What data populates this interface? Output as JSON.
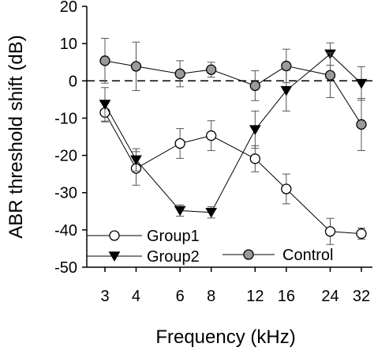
{
  "chart_data": {
    "type": "line",
    "xlabel": "Frequency (kHz)",
    "ylabel": "ABR threshold shift (dB)",
    "x_scale": "log2",
    "x": [
      3,
      4,
      6,
      8,
      12,
      16,
      24,
      32
    ],
    "x_tick_labels": [
      "3",
      "4",
      "6",
      "8",
      "12",
      "16",
      "24",
      "32"
    ],
    "ylim": [
      -50,
      20
    ],
    "y_ticks": [
      20,
      10,
      0,
      -10,
      -20,
      -30,
      -40,
      -50
    ],
    "y_tick_labels": [
      "20",
      "10",
      "0",
      "-10",
      "-20",
      "-30",
      "-40",
      "-50"
    ],
    "reference_line": {
      "y": 0,
      "style": "dashed"
    },
    "legend_position": "bottom-left",
    "series": [
      {
        "name": "Group1",
        "marker": "open-circle",
        "color": "#000000",
        "values": [
          -8.5,
          -23.5,
          -16.8,
          -14.7,
          -20.9,
          -29,
          -40.4,
          -41
        ],
        "errors": [
          2.5,
          4.5,
          4.0,
          4.0,
          3.5,
          4.0,
          3.5,
          1.5
        ]
      },
      {
        "name": "Group2",
        "marker": "filled-triangle-down",
        "color": "#000000",
        "values": [
          -6.3,
          -21.2,
          -34.8,
          -35.3,
          -13.1,
          -2.6,
          7.2,
          -0.7
        ],
        "errors": [
          4.5,
          3.0,
          1.5,
          1.5,
          5.0,
          5.5,
          3.0,
          4.5
        ]
      },
      {
        "name": "Control",
        "marker": "filled-circle",
        "color": "#9a9a9a",
        "values": [
          5.4,
          3.9,
          1.9,
          3,
          -1.3,
          4,
          1.5,
          -11.7
        ],
        "errors": [
          6.0,
          6.5,
          3.5,
          2.0,
          4.0,
          4.5,
          6.0,
          7.0
        ]
      }
    ]
  }
}
